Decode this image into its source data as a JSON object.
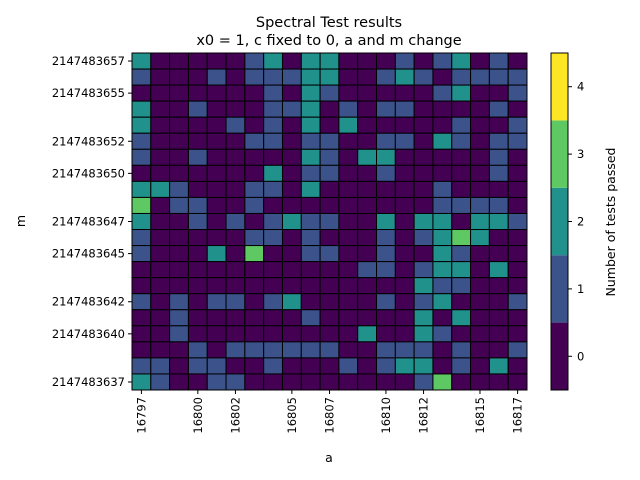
{
  "chart_data": {
    "type": "heatmap",
    "title": "Spectral Test results",
    "subtitle": "x0 = 1, c fixed to 0, a and m change",
    "xlabel": "a",
    "ylabel": "m",
    "x_values": [
      16797,
      16798,
      16799,
      16800,
      16801,
      16802,
      16803,
      16804,
      16805,
      16806,
      16807,
      16808,
      16809,
      16810,
      16811,
      16812,
      16813,
      16814,
      16815,
      16816,
      16817
    ],
    "y_values": [
      2147483657,
      2147483656,
      2147483655,
      2147483654,
      2147483653,
      2147483652,
      2147483651,
      2147483650,
      2147483649,
      2147483648,
      2147483647,
      2147483646,
      2147483645,
      2147483644,
      2147483643,
      2147483642,
      2147483641,
      2147483640,
      2147483639,
      2147483638,
      2147483637
    ],
    "x_tick_labels": [
      "16797",
      "16800",
      "16802",
      "16805",
      "16807",
      "16810",
      "16812",
      "16815",
      "16817"
    ],
    "y_tick_labels": [
      "2147483657",
      "2147483655",
      "2147483652",
      "2147483650",
      "2147483647",
      "2147483645",
      "2147483642",
      "2147483640",
      "2147483637"
    ],
    "values": [
      [
        2,
        0,
        0,
        0,
        0,
        0,
        1,
        2,
        0,
        2,
        2,
        0,
        0,
        0,
        1,
        0,
        1,
        2,
        0,
        1,
        0
      ],
      [
        1,
        0,
        0,
        0,
        1,
        0,
        1,
        1,
        1,
        2,
        2,
        0,
        0,
        1,
        2,
        1,
        0,
        1,
        1,
        1,
        1
      ],
      [
        0,
        0,
        0,
        0,
        0,
        0,
        0,
        1,
        0,
        2,
        1,
        0,
        0,
        0,
        0,
        0,
        1,
        2,
        0,
        0,
        1
      ],
      [
        2,
        0,
        0,
        1,
        0,
        0,
        0,
        1,
        1,
        2,
        0,
        1,
        0,
        1,
        1,
        0,
        0,
        0,
        0,
        1,
        0
      ],
      [
        2,
        0,
        0,
        0,
        0,
        1,
        0,
        1,
        0,
        2,
        0,
        2,
        0,
        0,
        0,
        0,
        0,
        1,
        0,
        0,
        1
      ],
      [
        1,
        0,
        0,
        0,
        0,
        0,
        1,
        1,
        0,
        1,
        1,
        0,
        0,
        1,
        1,
        0,
        2,
        1,
        0,
        1,
        1
      ],
      [
        1,
        0,
        0,
        1,
        0,
        0,
        0,
        0,
        0,
        2,
        1,
        0,
        2,
        2,
        0,
        0,
        0,
        0,
        0,
        1,
        0
      ],
      [
        0,
        0,
        0,
        0,
        0,
        0,
        0,
        2,
        0,
        1,
        1,
        0,
        0,
        1,
        0,
        0,
        0,
        0,
        0,
        1,
        0
      ],
      [
        2,
        2,
        1,
        0,
        0,
        0,
        1,
        1,
        0,
        2,
        0,
        0,
        0,
        0,
        0,
        0,
        1,
        0,
        0,
        0,
        0
      ],
      [
        3,
        0,
        1,
        1,
        0,
        0,
        1,
        0,
        0,
        0,
        0,
        0,
        0,
        0,
        0,
        0,
        1,
        1,
        1,
        1,
        0
      ],
      [
        2,
        0,
        0,
        1,
        0,
        1,
        0,
        1,
        2,
        1,
        1,
        0,
        0,
        2,
        0,
        2,
        2,
        0,
        2,
        2,
        1
      ],
      [
        1,
        0,
        0,
        0,
        0,
        0,
        1,
        1,
        0,
        1,
        0,
        0,
        0,
        1,
        0,
        1,
        2,
        3,
        2,
        0,
        0
      ],
      [
        1,
        0,
        0,
        0,
        2,
        0,
        3,
        0,
        0,
        1,
        1,
        0,
        0,
        1,
        0,
        0,
        2,
        1,
        0,
        0,
        0
      ],
      [
        0,
        0,
        0,
        0,
        0,
        0,
        0,
        0,
        0,
        0,
        0,
        0,
        1,
        1,
        0,
        1,
        2,
        2,
        0,
        2,
        0
      ],
      [
        0,
        0,
        0,
        0,
        0,
        0,
        0,
        0,
        0,
        0,
        0,
        0,
        0,
        0,
        0,
        2,
        1,
        1,
        0,
        0,
        0
      ],
      [
        1,
        0,
        1,
        0,
        1,
        1,
        0,
        1,
        2,
        0,
        0,
        0,
        0,
        1,
        0,
        1,
        2,
        0,
        0,
        0,
        1
      ],
      [
        0,
        0,
        1,
        0,
        0,
        0,
        0,
        0,
        0,
        1,
        0,
        0,
        0,
        0,
        0,
        2,
        0,
        2,
        0,
        0,
        0
      ],
      [
        0,
        0,
        1,
        0,
        0,
        0,
        0,
        0,
        0,
        0,
        0,
        0,
        2,
        0,
        0,
        2,
        1,
        0,
        0,
        0,
        0
      ],
      [
        0,
        0,
        0,
        1,
        0,
        1,
        1,
        1,
        1,
        1,
        1,
        0,
        0,
        1,
        1,
        1,
        0,
        1,
        0,
        0,
        1
      ],
      [
        1,
        1,
        0,
        1,
        1,
        0,
        0,
        1,
        0,
        0,
        0,
        1,
        0,
        1,
        2,
        2,
        0,
        1,
        0,
        2,
        0
      ],
      [
        2,
        1,
        0,
        0,
        1,
        1,
        0,
        0,
        0,
        0,
        0,
        0,
        0,
        0,
        0,
        1,
        3,
        0,
        0,
        0,
        0
      ]
    ],
    "colorbar": {
      "label": "Number of tests passed",
      "ticks": [
        "0",
        "1",
        "2",
        "3",
        "4"
      ],
      "min": -0.5,
      "max": 4.5,
      "colors": [
        "#440154",
        "#3b528b",
        "#21918c",
        "#5ec962",
        "#fde725"
      ]
    },
    "grid": false
  }
}
